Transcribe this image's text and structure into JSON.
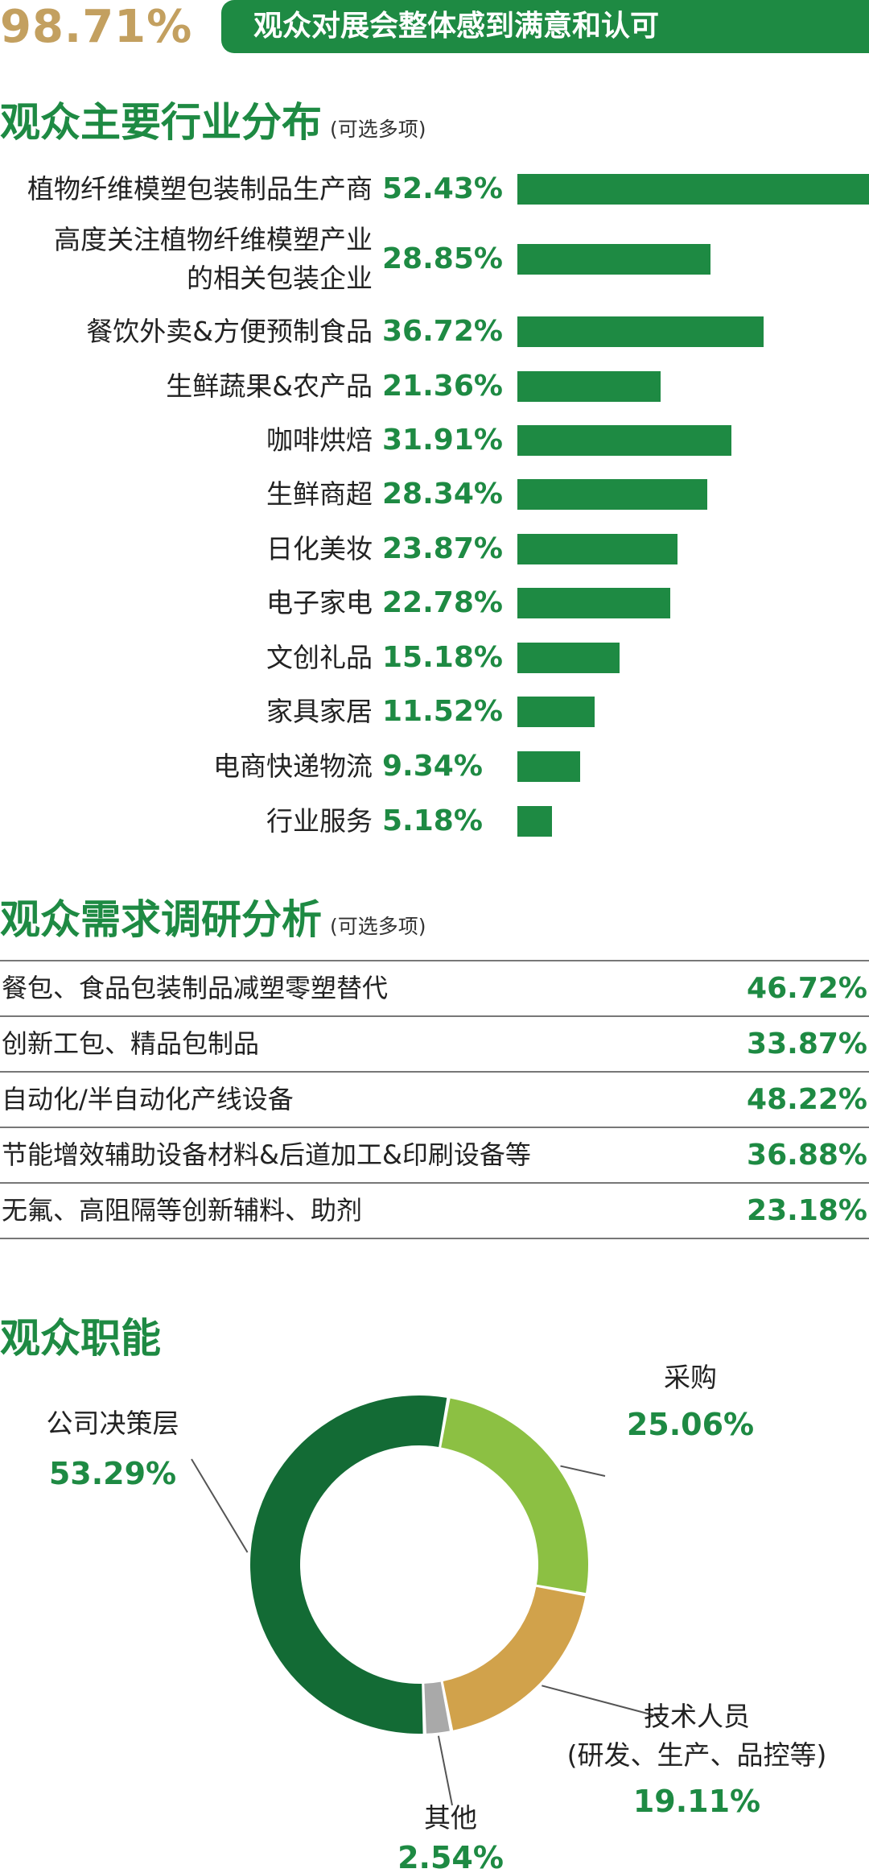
{
  "banner": {
    "percent": "98.71%",
    "text": "观众对展会整体感到满意和认可"
  },
  "colors": {
    "green": "#1e8a43",
    "gold": "#c3a060",
    "dark_green": "#136b35",
    "light_green": "#8cc043",
    "tan": "#d1a24b",
    "gray": "#a9a9a9"
  },
  "sections": {
    "industry_title": "观众主要行业分布",
    "industry_note": "(可选多项)",
    "needs_title": "观众需求调研分析",
    "needs_note": "(可选多项)",
    "role_title": "观众职能"
  },
  "chart_data": [
    {
      "type": "bar",
      "title": "观众主要行业分布",
      "subtitle": "(可选多项)",
      "categories": [
        "植物纤维模塑包装制品生产商",
        "高度关注植物纤维模塑产业的相关包装企业",
        "餐饮外卖&方便预制食品",
        "生鲜蔬果&农产品",
        "咖啡烘焙",
        "生鲜商超",
        "日化美妆",
        "电子家电",
        "文创礼品",
        "家具家居",
        "电商快递物流",
        "行业服务"
      ],
      "label_lines": [
        [
          "植物纤维模塑包装制品生产商"
        ],
        [
          "高度关注植物纤维模塑产业",
          "的相关包装企业"
        ],
        [
          "餐饮外卖&方便预制食品"
        ],
        [
          "生鲜蔬果&农产品"
        ],
        [
          "咖啡烘焙"
        ],
        [
          "生鲜商超"
        ],
        [
          "日化美妆"
        ],
        [
          "电子家电"
        ],
        [
          "文创礼品"
        ],
        [
          "家具家居"
        ],
        [
          "电商快递物流"
        ],
        [
          "行业服务"
        ]
      ],
      "values": [
        52.43,
        28.85,
        36.72,
        21.36,
        31.91,
        28.34,
        23.87,
        22.78,
        15.18,
        11.52,
        9.34,
        5.18
      ],
      "value_labels": [
        "52.43%",
        "28.85%",
        "36.72%",
        "21.36%",
        "31.91%",
        "28.34%",
        "23.87%",
        "22.78%",
        "15.18%",
        "11.52%",
        "9.34%",
        "5.18%"
      ],
      "orientation": "horizontal",
      "xlim": [
        0,
        52.43
      ],
      "grid": false
    },
    {
      "type": "table",
      "title": "观众需求调研分析",
      "subtitle": "(可选多项)",
      "rows": [
        {
          "label": "餐包、食品包装制品减塑零塑替代",
          "value": "46.72%"
        },
        {
          "label": "创新工包、精品包制品",
          "value": "33.87%"
        },
        {
          "label": "自动化/半自动化产线设备",
          "value": "48.22%"
        },
        {
          "label": "节能增效辅助设备材料&后道加工&印刷设备等",
          "value": "36.88%"
        },
        {
          "label": "无氟、高阻隔等创新辅料、助剂",
          "value": "23.18%"
        }
      ]
    },
    {
      "type": "pie",
      "title": "观众职能",
      "donut": true,
      "slices": [
        {
          "label_lines": [
            "采购"
          ],
          "value": 25.06,
          "value_label": "25.06%",
          "color": "#8cc043"
        },
        {
          "label_lines": [
            "技术人员",
            "(研发、生产、品控等)"
          ],
          "value": 19.11,
          "value_label": "19.11%",
          "color": "#d1a24b"
        },
        {
          "label_lines": [
            "其他"
          ],
          "value": 2.54,
          "value_label": "2.54%",
          "color": "#a9a9a9"
        },
        {
          "label_lines": [
            "公司决策层"
          ],
          "value": 53.29,
          "value_label": "53.29%",
          "color": "#136b35"
        }
      ]
    }
  ]
}
